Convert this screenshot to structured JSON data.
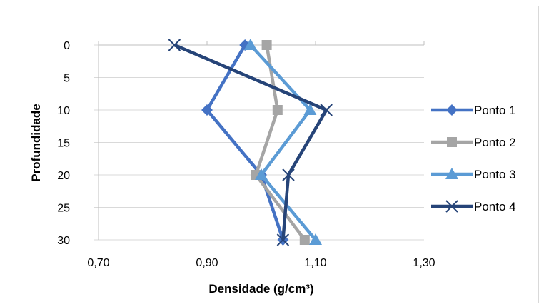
{
  "chart_data": {
    "type": "line",
    "title": "",
    "xlabel": "Densidade (g/cm³)",
    "ylabel": "Profundidade",
    "xlim": [
      0.7,
      1.3
    ],
    "ylim": [
      0,
      30
    ],
    "y_inverted": true,
    "x_ticks": [
      "0,70",
      "0,90",
      "1,10",
      "1,30"
    ],
    "y_ticks": [
      "0",
      "5",
      "10",
      "15",
      "20",
      "25",
      "30"
    ],
    "grid": "horizontal",
    "legend_position": "right",
    "series": [
      {
        "name": "Ponto 1",
        "color": "#4472C4",
        "marker": "diamond",
        "points": [
          [
            0.97,
            0
          ],
          [
            0.9,
            10
          ],
          [
            1.0,
            20
          ],
          [
            1.04,
            30
          ]
        ]
      },
      {
        "name": "Ponto 2",
        "color": "#A5A5A5",
        "marker": "square",
        "points": [
          [
            1.01,
            0
          ],
          [
            1.03,
            10
          ],
          [
            0.99,
            20
          ],
          [
            1.08,
            30
          ]
        ]
      },
      {
        "name": "Ponto 3",
        "color": "#5B9BD5",
        "marker": "triangle",
        "points": [
          [
            0.98,
            0
          ],
          [
            1.09,
            10
          ],
          [
            1.0,
            20
          ],
          [
            1.1,
            30
          ]
        ]
      },
      {
        "name": "Ponto 4",
        "color": "#264478",
        "marker": "x",
        "points": [
          [
            0.84,
            0
          ],
          [
            1.12,
            10
          ],
          [
            1.05,
            20
          ],
          [
            1.04,
            30
          ]
        ]
      }
    ]
  }
}
